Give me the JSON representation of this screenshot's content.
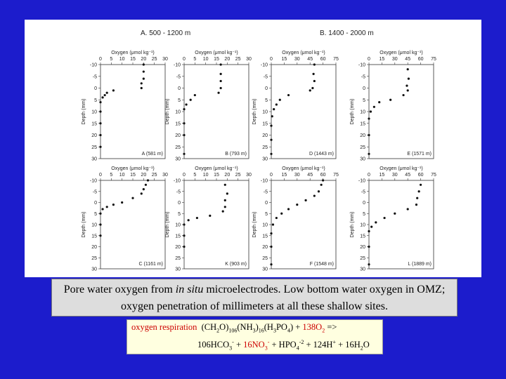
{
  "headings": [
    "A.   500 - 1200 m",
    "B.   1400 - 2000 m"
  ],
  "chart_data": [
    {
      "type": "scatter",
      "site": "A (581 m)",
      "x_label": "Oxygen (μmol kg⁻¹)",
      "y_label": "Depth (mm)",
      "xlim": [
        0,
        30
      ],
      "xticks": [
        0,
        5,
        10,
        15,
        20,
        25,
        30
      ],
      "ylim": [
        30,
        -10
      ],
      "yticks": [
        -10,
        -5,
        0,
        5,
        10,
        15,
        20,
        25,
        30
      ],
      "color": "#111111",
      "x": [
        20,
        20,
        20,
        19,
        19,
        6,
        3,
        2,
        1,
        0,
        0,
        0,
        0,
        0
      ],
      "values": [
        -10,
        -7,
        -4,
        -2,
        0,
        1,
        2,
        3,
        4,
        6,
        10,
        15,
        20,
        25
      ]
    },
    {
      "type": "scatter",
      "site": "B (793 m)",
      "x_label": "Oxygen (μmol kg⁻¹)",
      "y_label": "Depth (mm)",
      "xlim": [
        0,
        30
      ],
      "xticks": [
        0,
        5,
        10,
        15,
        20,
        25,
        30
      ],
      "ylim": [
        30,
        -10
      ],
      "yticks": [
        -10,
        -5,
        0,
        5,
        10,
        15,
        20,
        25,
        30
      ],
      "color": "#111111",
      "x": [
        17,
        17,
        17,
        17,
        16,
        5,
        3,
        1,
        0,
        0,
        0,
        0
      ],
      "values": [
        -10,
        -6,
        -3,
        0,
        2,
        3,
        5,
        7,
        9,
        15,
        20,
        28
      ]
    },
    {
      "type": "scatter",
      "site": "D (1443 m)",
      "x_label": "Oxygen (μmol kg⁻¹)",
      "y_label": "Depth (mm)",
      "xlim": [
        0,
        75
      ],
      "xticks": [
        0,
        15,
        30,
        45,
        60,
        75
      ],
      "ylim": [
        30,
        -10
      ],
      "yticks": [
        -10,
        -5,
        0,
        5,
        10,
        15,
        20,
        25,
        30
      ],
      "color": "#111111",
      "x": [
        50,
        49,
        50,
        48,
        45,
        20,
        10,
        6,
        3,
        1,
        0,
        0,
        0
      ],
      "values": [
        -10,
        -6,
        -3,
        0,
        1,
        3,
        5,
        7,
        9,
        12,
        16,
        22,
        28
      ]
    },
    {
      "type": "scatter",
      "site": "E (1571 m)",
      "x_label": "Oxygen (μmol kg⁻¹)",
      "y_label": "Depth (mm)",
      "xlim": [
        0,
        75
      ],
      "xticks": [
        0,
        15,
        30,
        45,
        60,
        75
      ],
      "ylim": [
        30,
        -10
      ],
      "yticks": [
        -10,
        -5,
        0,
        5,
        10,
        15,
        20,
        25,
        30
      ],
      "color": "#111111",
      "x": [
        45,
        46,
        44,
        45,
        40,
        25,
        12,
        6,
        2,
        0,
        0,
        0
      ],
      "values": [
        -8,
        -4,
        -1,
        1,
        3,
        5,
        6,
        8,
        10,
        13,
        20,
        28
      ]
    },
    {
      "type": "scatter",
      "site": "C (1161 m)",
      "x_label": "Oxygen (μmol kg⁻¹)",
      "y_label": "Depth (mm)",
      "xlim": [
        0,
        30
      ],
      "xticks": [
        0,
        5,
        10,
        15,
        20,
        25,
        30
      ],
      "ylim": [
        30,
        -10
      ],
      "yticks": [
        -10,
        -5,
        0,
        5,
        10,
        15,
        20,
        25,
        30
      ],
      "color": "#111111",
      "x": [
        22,
        21,
        20,
        19,
        15,
        10,
        6,
        3,
        1,
        0,
        0,
        0
      ],
      "values": [
        -10,
        -8,
        -6,
        -4,
        -2,
        0,
        1,
        2,
        3,
        5,
        10,
        15
      ]
    },
    {
      "type": "scatter",
      "site": "K (903 m)",
      "x_label": "Oxygen (μmol kg⁻¹)",
      "y_label": "Depth (mm)",
      "xlim": [
        0,
        30
      ],
      "xticks": [
        0,
        5,
        10,
        15,
        20,
        25,
        30
      ],
      "ylim": [
        30,
        -10
      ],
      "yticks": [
        -10,
        -5,
        0,
        5,
        10,
        15,
        20,
        25,
        30
      ],
      "color": "#111111",
      "x": [
        19,
        20,
        19,
        19,
        18,
        12,
        6,
        2,
        0,
        0,
        0
      ],
      "values": [
        -8,
        -4,
        -1,
        2,
        4,
        6,
        7,
        8,
        10,
        15,
        20
      ]
    },
    {
      "type": "scatter",
      "site": "F (1548 m)",
      "x_label": "Oxygen (μmol kg⁻¹)",
      "y_label": "Depth (mm)",
      "xlim": [
        0,
        75
      ],
      "xticks": [
        0,
        15,
        30,
        45,
        60,
        75
      ],
      "ylim": [
        30,
        -10
      ],
      "yticks": [
        -10,
        -5,
        0,
        5,
        10,
        15,
        20,
        25,
        30
      ],
      "color": "#111111",
      "x": [
        60,
        58,
        55,
        50,
        40,
        30,
        20,
        12,
        6,
        2,
        0,
        0,
        0
      ],
      "values": [
        -10,
        -8,
        -5,
        -3,
        -1,
        1,
        3,
        5,
        7,
        10,
        14,
        20,
        28
      ]
    },
    {
      "type": "scatter",
      "site": "L (1889 m)",
      "x_label": "Oxygen (μmol kg⁻¹)",
      "y_label": "Depth (mm)",
      "xlim": [
        0,
        75
      ],
      "xticks": [
        0,
        15,
        30,
        45,
        60,
        75
      ],
      "ylim": [
        30,
        -10
      ],
      "yticks": [
        -10,
        -5,
        0,
        5,
        10,
        15,
        20,
        25,
        30
      ],
      "color": "#111111",
      "x": [
        60,
        58,
        56,
        55,
        45,
        30,
        18,
        8,
        3,
        0,
        0,
        0
      ],
      "values": [
        -8,
        -5,
        -2,
        1,
        3,
        5,
        7,
        9,
        11,
        13,
        20,
        28
      ]
    }
  ],
  "caption": {
    "parts": [
      {
        "text": "Pore water oxygen from ",
        "style": "normal"
      },
      {
        "text": "in situ",
        "style": "italic"
      },
      {
        "text": " microelectrodes. Low bottom water oxygen in OMZ; oxygen penetration of millimeters at all these shallow sites.",
        "style": "normal"
      }
    ]
  },
  "equation": {
    "lines": [
      [
        {
          "text": "oxygen respiration",
          "pos": "base",
          "color": "#cc0000"
        },
        {
          "text": "  (CH",
          "pos": "base",
          "color": "#000000"
        },
        {
          "text": "2",
          "pos": "sub",
          "color": "#000000"
        },
        {
          "text": "O)",
          "pos": "base",
          "color": "#000000"
        },
        {
          "text": "106",
          "pos": "sub",
          "color": "#000000"
        },
        {
          "text": "(NH",
          "pos": "base",
          "color": "#000000"
        },
        {
          "text": "3",
          "pos": "sub",
          "color": "#000000"
        },
        {
          "text": ")",
          "pos": "base",
          "color": "#000000"
        },
        {
          "text": "16",
          "pos": "sub",
          "color": "#000000"
        },
        {
          "text": "(H",
          "pos": "base",
          "color": "#000000"
        },
        {
          "text": "3",
          "pos": "sub",
          "color": "#000000"
        },
        {
          "text": "PO",
          "pos": "base",
          "color": "#000000"
        },
        {
          "text": "4",
          "pos": "sub",
          "color": "#000000"
        },
        {
          "text": ") + ",
          "pos": "base",
          "color": "#000000"
        },
        {
          "text": "138O",
          "pos": "base",
          "color": "#cc0000"
        },
        {
          "text": "2",
          "pos": "sub",
          "color": "#cc0000"
        },
        {
          "text": " =>",
          "pos": "base",
          "color": "#000000"
        }
      ],
      [
        {
          "text": "106HCO",
          "pos": "base",
          "color": "#000000"
        },
        {
          "text": "3",
          "pos": "sub",
          "color": "#000000"
        },
        {
          "text": "-",
          "pos": "sup",
          "color": "#000000"
        },
        {
          "text": " + ",
          "pos": "base",
          "color": "#000000"
        },
        {
          "text": "16NO",
          "pos": "base",
          "color": "#cc0000"
        },
        {
          "text": "3",
          "pos": "sub",
          "color": "#cc0000"
        },
        {
          "text": "-",
          "pos": "sup",
          "color": "#cc0000"
        },
        {
          "text": " + HPO",
          "pos": "base",
          "color": "#000000"
        },
        {
          "text": "4",
          "pos": "sub",
          "color": "#000000"
        },
        {
          "text": "-2",
          "pos": "sup",
          "color": "#000000"
        },
        {
          "text": " + 124H",
          "pos": "base",
          "color": "#000000"
        },
        {
          "text": "+",
          "pos": "sup",
          "color": "#000000"
        },
        {
          "text": " + 16H",
          "pos": "base",
          "color": "#000000"
        },
        {
          "text": "2",
          "pos": "sub",
          "color": "#000000"
        },
        {
          "text": "O",
          "pos": "base",
          "color": "#000000"
        }
      ]
    ]
  }
}
